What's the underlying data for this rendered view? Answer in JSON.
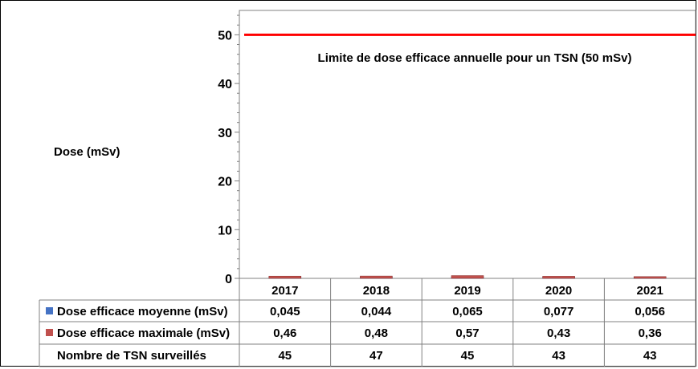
{
  "chart_data": {
    "type": "bar",
    "ylabel": "Dose (mSv)",
    "ylim": [
      0,
      55
    ],
    "yticks": [
      0,
      10,
      20,
      30,
      40,
      50
    ],
    "grid": false,
    "categories": [
      "2017",
      "2018",
      "2019",
      "2020",
      "2021"
    ],
    "series": [
      {
        "name": "Dose efficace moyenne (mSv)",
        "color": "#4472C4",
        "values": [
          0.045,
          0.044,
          0.065,
          0.077,
          0.056
        ],
        "labels": [
          "0,045",
          "0,044",
          "0,065",
          "0,077",
          "0,056"
        ]
      },
      {
        "name": "Dose efficace maximale (mSv)",
        "color": "#C0504D",
        "values": [
          0.46,
          0.48,
          0.57,
          0.43,
          0.36
        ],
        "labels": [
          "0,46",
          "0,48",
          "0,57",
          "0,43",
          "0,36"
        ]
      }
    ],
    "extra_row": {
      "name": "Nombre de TSN surveillés",
      "values": [
        45,
        47,
        45,
        43,
        43
      ],
      "labels": [
        "45",
        "47",
        "45",
        "43",
        "43"
      ]
    },
    "limit_line": {
      "value": 50,
      "label": "Limite de dose efficace annuelle pour un TSN (50 mSv)",
      "color": "#FF0000"
    }
  }
}
